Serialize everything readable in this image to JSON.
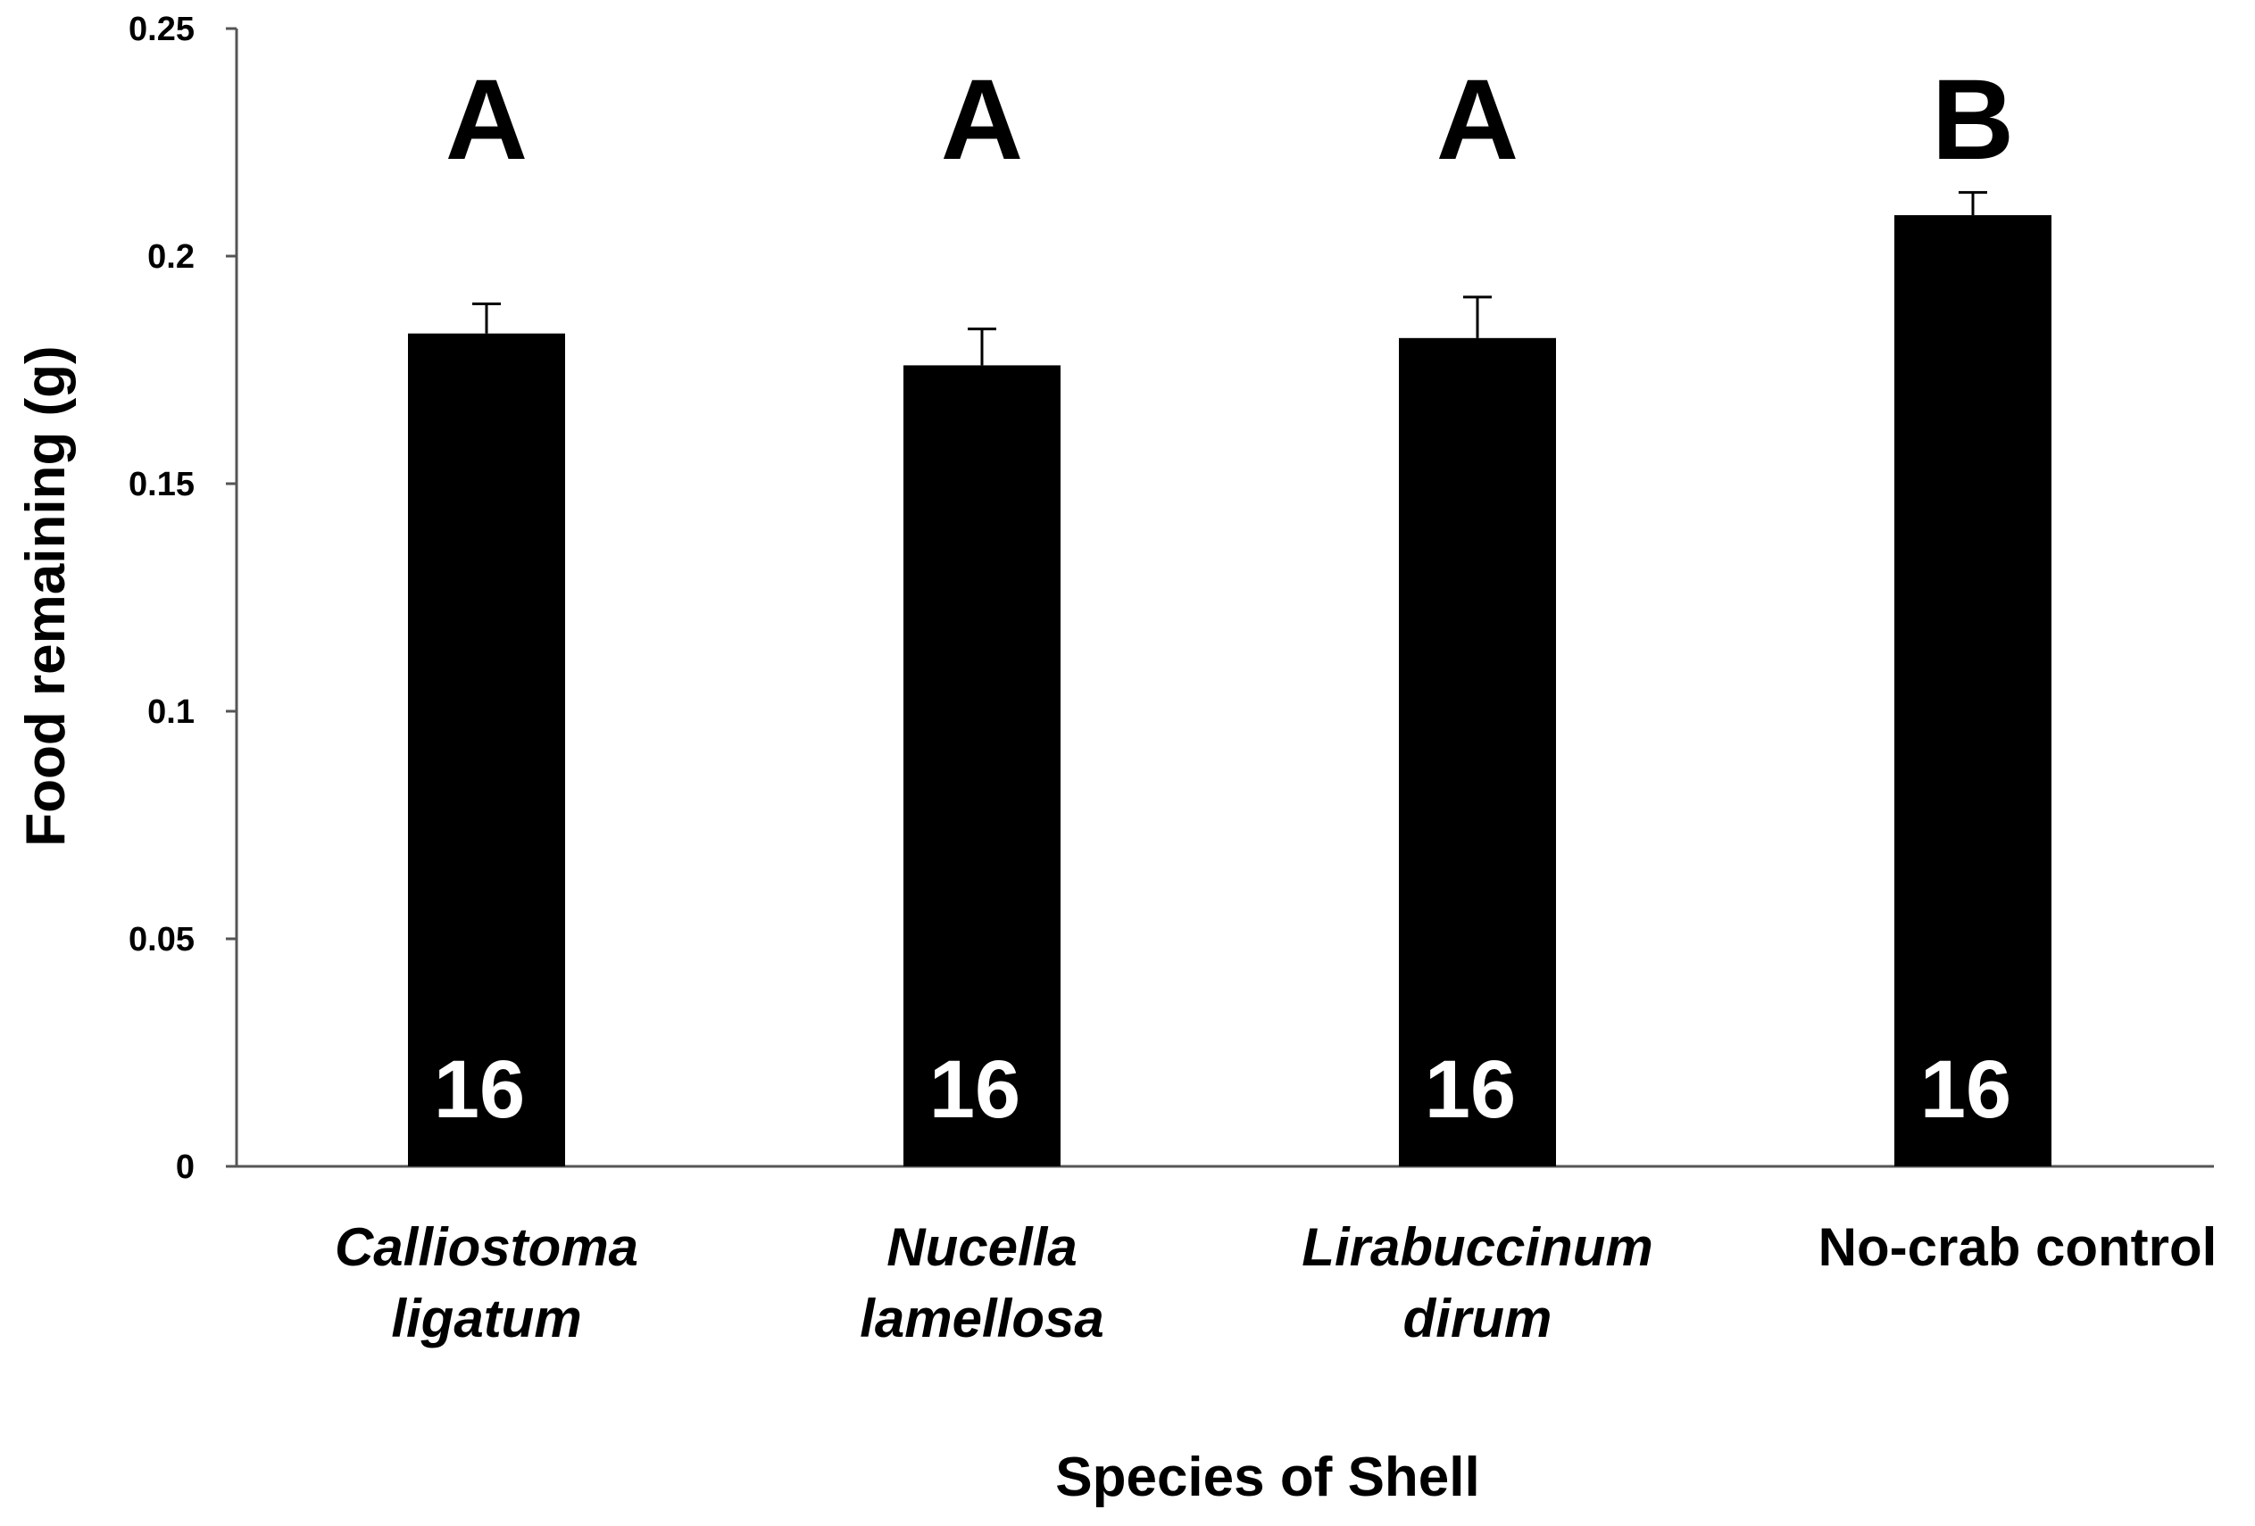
{
  "chart_data": {
    "type": "bar",
    "title": "",
    "xlabel": "Species of Shell",
    "ylabel": "Food remaining (g)",
    "ylim": [
      0,
      0.25
    ],
    "yticks": [
      "0",
      "0.05",
      "0.1",
      "0.15",
      "0.2",
      "0.25"
    ],
    "ytick_values": [
      0,
      0.05,
      0.1,
      0.15,
      0.2,
      0.25
    ],
    "grid": false,
    "categories": [
      {
        "lines": [
          "Calliostoma",
          "ligatum"
        ],
        "italic": true
      },
      {
        "lines": [
          "Nucella",
          "lamellosa"
        ],
        "italic": true
      },
      {
        "lines": [
          "Lirabuccinum",
          "dirum"
        ],
        "italic": true
      },
      {
        "lines": [
          "No-crab control"
        ],
        "italic": false
      }
    ],
    "values": [
      0.183,
      0.176,
      0.182,
      0.209
    ],
    "errors": [
      0.0065,
      0.008,
      0.009,
      0.005
    ],
    "significance": [
      "A",
      "A",
      "A",
      "B"
    ],
    "sample_sizes": [
      "16",
      "16",
      "16",
      "16"
    ],
    "bar_color": "#000000",
    "n_label_color": "#ffffff"
  }
}
